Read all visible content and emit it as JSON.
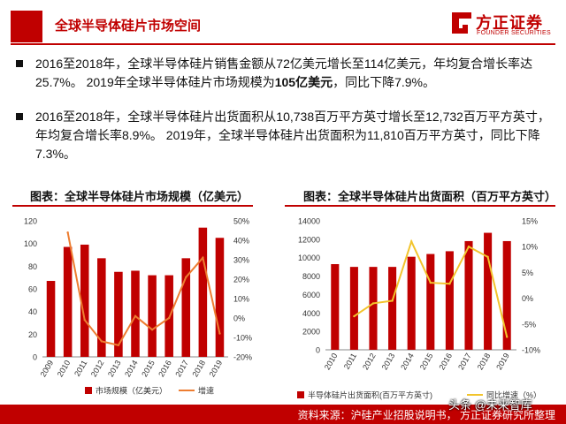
{
  "title": "全球半导体硅片市场空间",
  "logo": {
    "name": "方正证券",
    "sub": "FOUNDER SECURITIES"
  },
  "bullets": [
    {
      "before": "2016至2018年，全球半导体硅片销售金额从72亿美元增长至114亿美元，年均复合增长率达25.7%。 2019年全球半导体硅片市场规模为",
      "bold": "105亿美元",
      "after": "，同比下降7.9%。"
    },
    {
      "before": "2016至2018年，全球半导体硅片出货面积从10,738百万平方英寸增长至12,732百万平方英寸，年均复合增长率8.9%。 2019年，全球半导体硅片出货面积为11,810百万平方英寸，同比下降7.3%。",
      "bold": "",
      "after": ""
    }
  ],
  "footer": "资料来源：沪硅产业招股说明书， 方正证券研究所整理",
  "watermark": "头条 @未来智库",
  "colors": {
    "brand": "#c00000",
    "bar": "#c00000",
    "line": "#ed7d31",
    "line2": "#f2c42c"
  },
  "chart_data": [
    {
      "type": "bar",
      "title": "图表：全球半导体硅片市场规模（亿美元）",
      "categories": [
        "2009",
        "2010",
        "2011",
        "2012",
        "2013",
        "2014",
        "2015",
        "2016",
        "2017",
        "2018",
        "2019"
      ],
      "series": [
        {
          "name": "市场规模（亿美元）",
          "type": "bar",
          "axis": "left",
          "values": [
            67,
            97,
            99,
            87,
            75,
            76,
            72,
            72,
            87,
            114,
            105
          ]
        },
        {
          "name": "增速",
          "type": "line",
          "axis": "right",
          "values": [
            null,
            44,
            -1,
            -12,
            -14,
            1,
            -6,
            0,
            21,
            31,
            -8
          ]
        }
      ],
      "ylim_left": [
        0,
        120
      ],
      "yticks_left": [
        "0",
        "20",
        "40",
        "60",
        "80",
        "100",
        "120"
      ],
      "ylim_right": [
        -20,
        50
      ],
      "yticks_right": [
        "-20%",
        "-10%",
        "0%",
        "10%",
        "20%",
        "30%",
        "40%",
        "50%"
      ],
      "legend": "bottom"
    },
    {
      "type": "bar",
      "title": "图表：全球半导体硅片出货面积（百万平方英寸）",
      "categories": [
        "2010",
        "2011",
        "2012",
        "2013",
        "2014",
        "2015",
        "2016",
        "2017",
        "2018",
        "2019"
      ],
      "series": [
        {
          "name": "半导体硅片出货面积(百万平方英寸)",
          "type": "bar",
          "axis": "left",
          "values": [
            9300,
            9000,
            9000,
            9000,
            10100,
            10400,
            10700,
            11800,
            12700,
            11800
          ]
        },
        {
          "name": "同比增速（%）",
          "type": "line",
          "axis": "right",
          "values": [
            null,
            -3.5,
            -1,
            -0.5,
            11,
            3,
            2.8,
            10,
            8,
            -7.5
          ]
        }
      ],
      "ylim_left": [
        0,
        14000
      ],
      "yticks_left": [
        "0",
        "2000",
        "4000",
        "6000",
        "8000",
        "10000",
        "12000",
        "14000"
      ],
      "ylim_right": [
        -10,
        15
      ],
      "yticks_right": [
        "-10%",
        "-5%",
        "0%",
        "5%",
        "10%",
        "15%"
      ],
      "legend": "bottom"
    }
  ]
}
